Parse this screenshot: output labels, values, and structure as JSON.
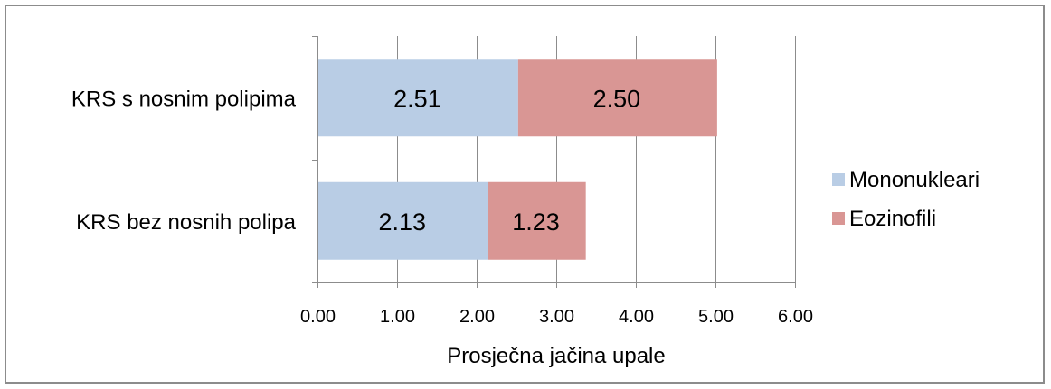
{
  "chart_data": {
    "type": "bar",
    "orientation": "horizontal",
    "stacked": true,
    "categories": [
      "KRS s nosnim polipima",
      "KRS bez nosnih polipa"
    ],
    "series": [
      {
        "name": "Mononukleari",
        "values": [
          2.51,
          2.13
        ],
        "labels": [
          "2.51",
          "2.13"
        ],
        "color": "#b9cde5"
      },
      {
        "name": "Eozinofili",
        "values": [
          2.5,
          1.23
        ],
        "labels": [
          "2.50",
          "1.23"
        ],
        "color": "#d99694"
      }
    ],
    "title": "",
    "xlabel": "Prosječna jačina upale",
    "ylabel": "",
    "xlim": [
      0,
      6
    ],
    "xticks": [
      "0.00",
      "1.00",
      "2.00",
      "3.00",
      "4.00",
      "5.00",
      "6.00"
    ],
    "grid": true,
    "grid_color": "#8c8c8c",
    "legend_position": "right"
  }
}
